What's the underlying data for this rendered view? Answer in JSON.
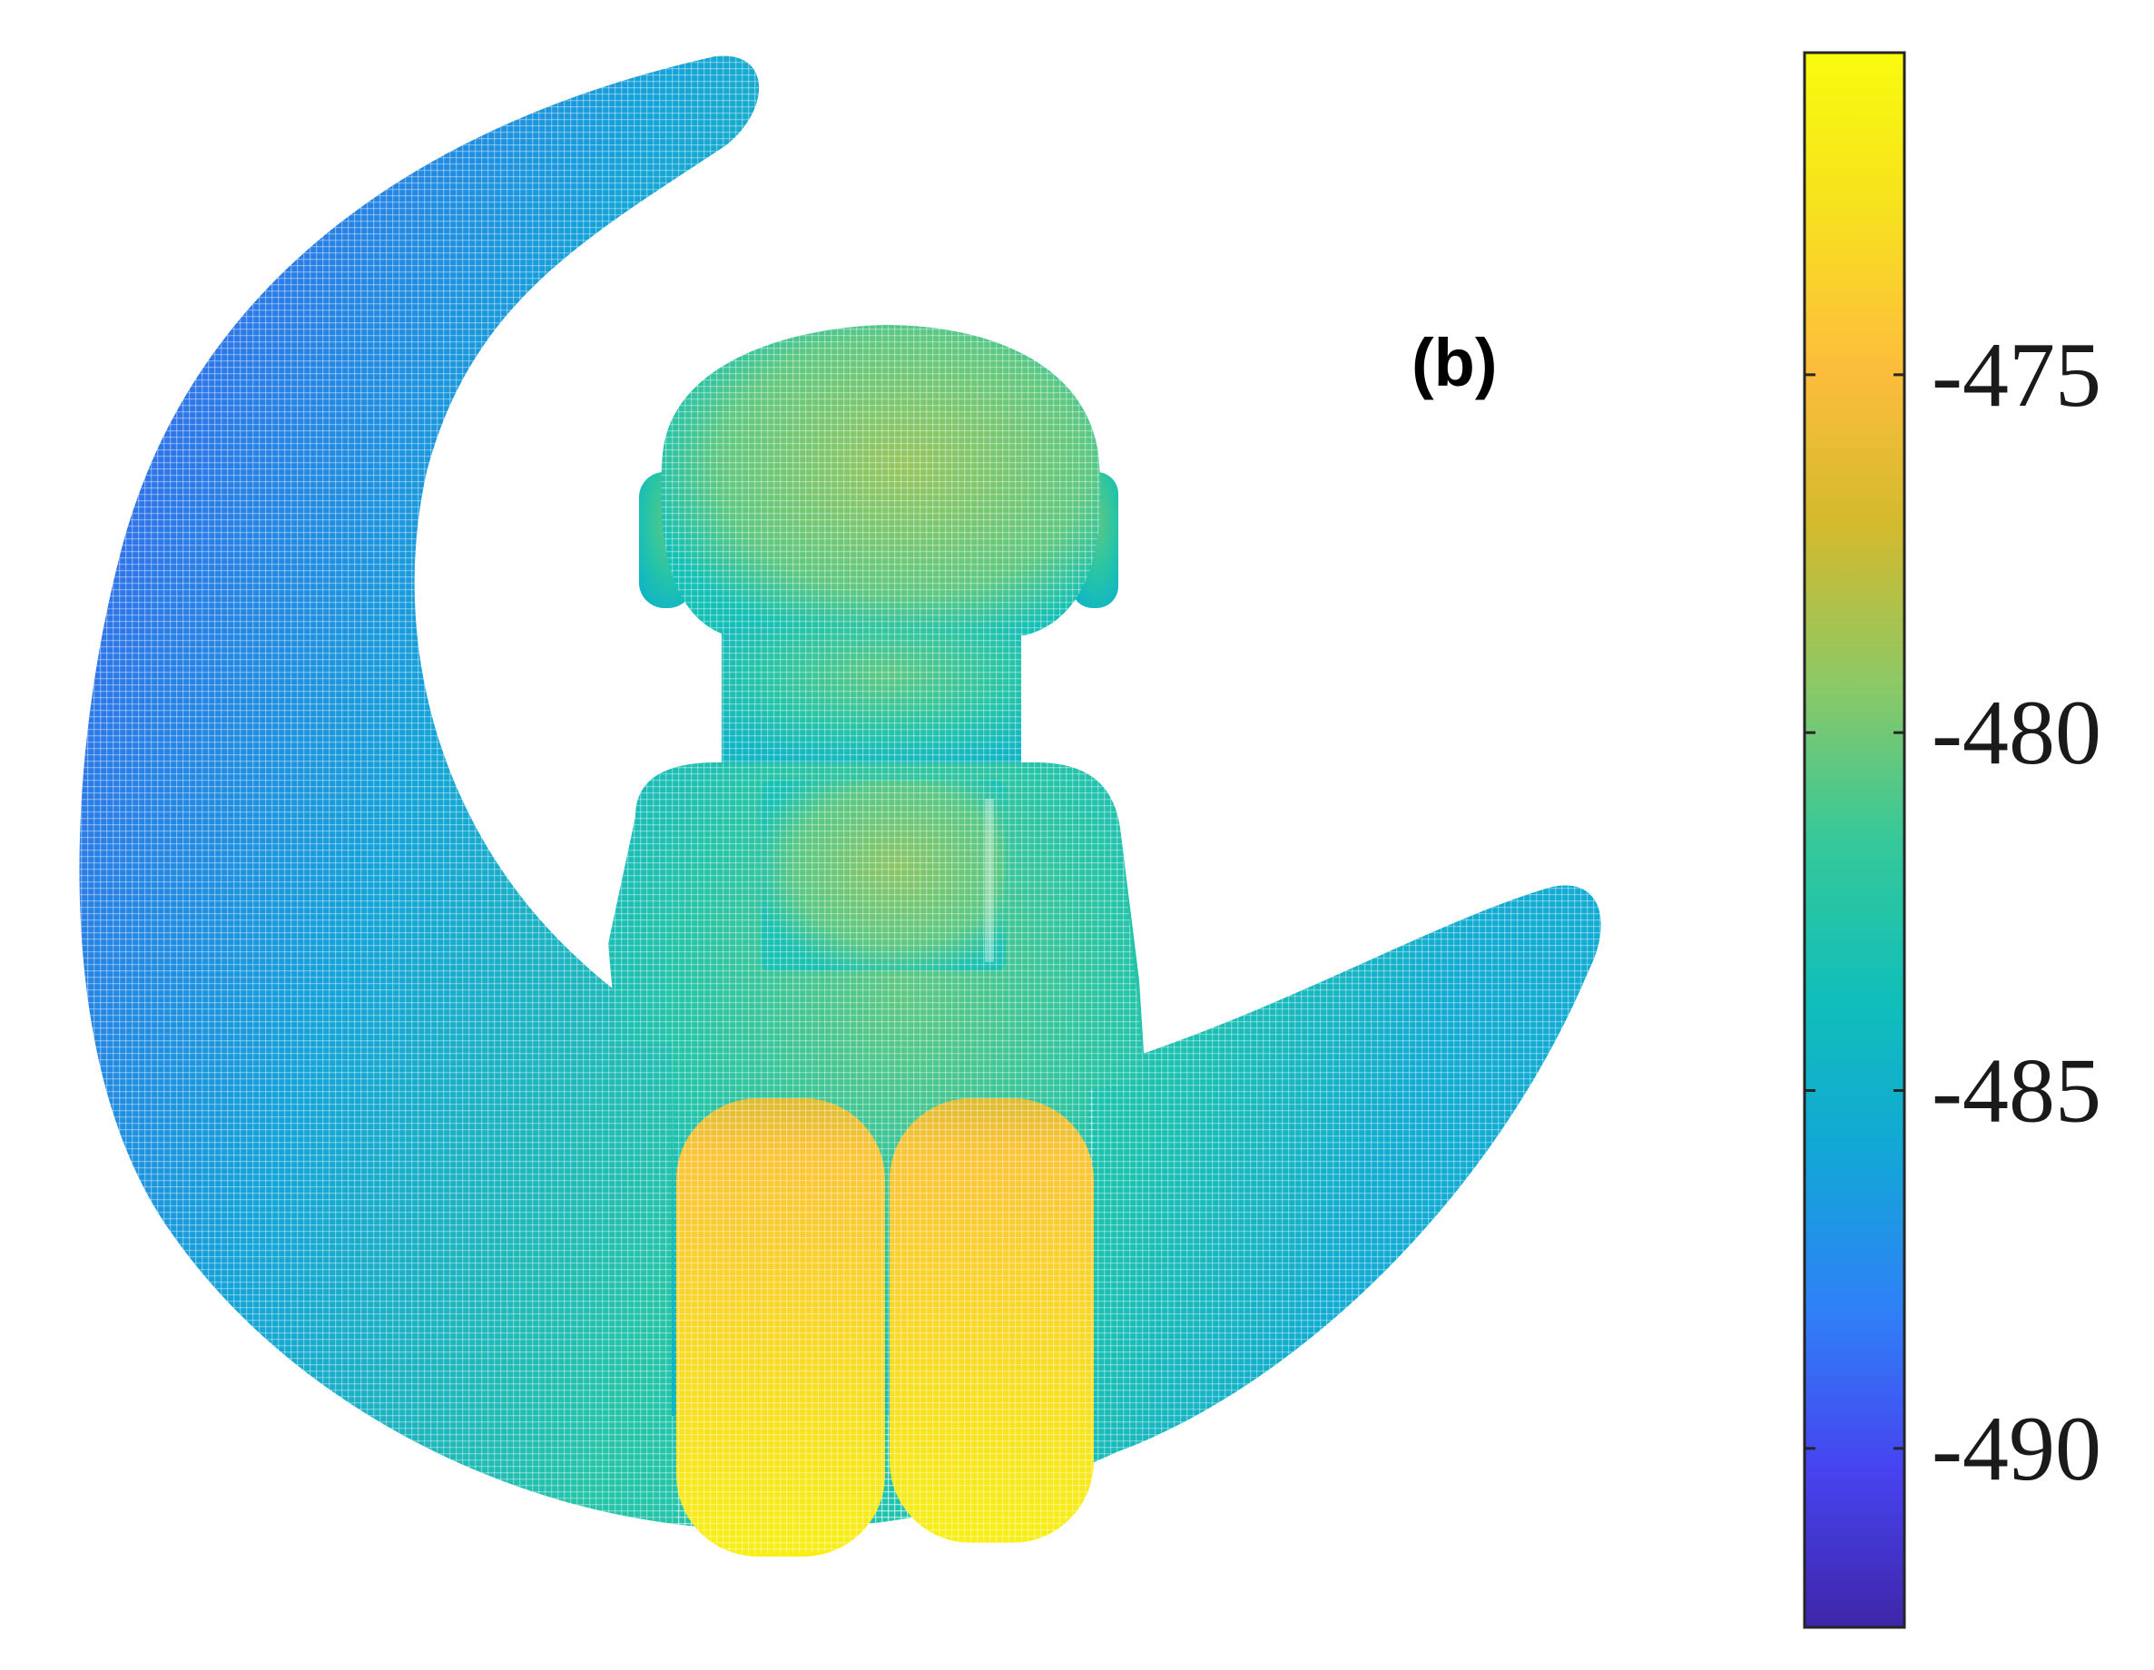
{
  "chart_data": {
    "type": "heatmap",
    "title": "",
    "panel_label": "(b)",
    "description_kind": "depth map point cloud",
    "colormap": "parula",
    "colormap_stops": [
      "#3e26a8",
      "#4743f0",
      "#2f80f7",
      "#13a6d7",
      "#10bfb9",
      "#36c899",
      "#8dc865",
      "#d3ba2d",
      "#fdbd3c",
      "#f7e11f",
      "#f9fb0e"
    ],
    "colorbar": {
      "range": [
        -492.5,
        -470.5
      ],
      "ticks": [
        -475,
        -480,
        -485,
        -490
      ],
      "tick_labels": [
        "-475",
        "-480",
        "-485",
        "-490"
      ],
      "position": "right"
    },
    "regions": [
      {
        "name": "moon-top-tip",
        "value": -487.5
      },
      {
        "name": "moon-left-edge",
        "value": -489.5
      },
      {
        "name": "moon-lower-body",
        "value": -483.5
      },
      {
        "name": "moon-right-tip",
        "value": -485.5
      },
      {
        "name": "figure-head",
        "value": -479.5
      },
      {
        "name": "figure-ears",
        "value": -485.0
      },
      {
        "name": "figure-torso",
        "value": -481.5
      },
      {
        "name": "figure-legs",
        "value": -474.0
      },
      {
        "name": "figure-leg-bottoms",
        "value": -472.0
      }
    ],
    "grid": false,
    "legend": "colorbar-right"
  }
}
